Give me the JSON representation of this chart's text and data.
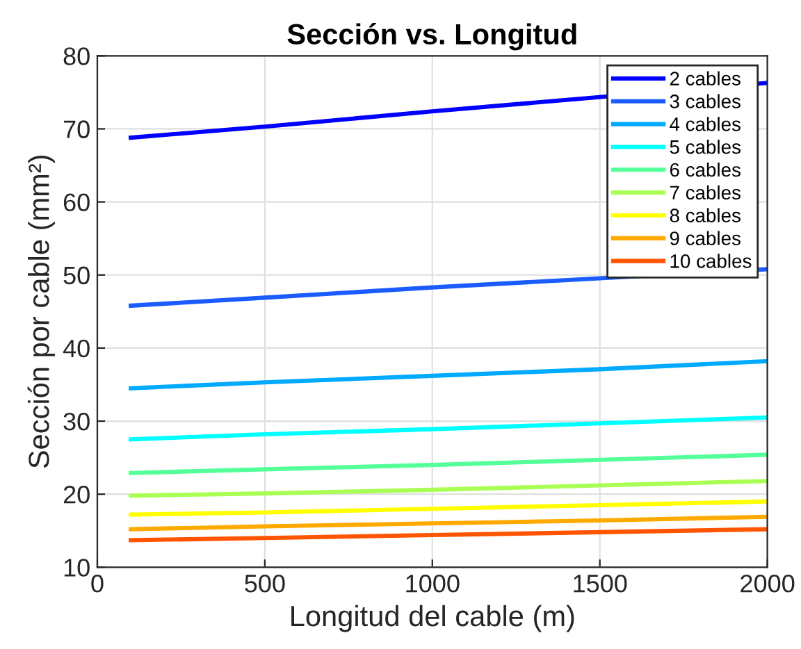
{
  "chart_data": {
    "type": "line",
    "title": "Sección vs. Longitud",
    "xlabel": "Longitud del cable (m)",
    "ylabel": "Sección por cable (mm²)",
    "xlim": [
      0,
      2000
    ],
    "xticks": [
      0,
      500,
      1000,
      1500,
      2000
    ],
    "ylim": [
      10,
      80
    ],
    "yticks": [
      10,
      20,
      30,
      40,
      50,
      60,
      70,
      80
    ],
    "grid": true,
    "legend": "top right",
    "series": [
      {
        "name": "2 cables",
        "color": "#0000ff",
        "x": [
          100,
          500,
          1000,
          2000
        ],
        "values": [
          68.8,
          70.3,
          72.4,
          76.3
        ]
      },
      {
        "name": "3 cables",
        "color": "#1a5cff",
        "x": [
          100,
          500,
          1000,
          2000
        ],
        "values": [
          45.8,
          46.9,
          48.3,
          50.8
        ]
      },
      {
        "name": "4 cables",
        "color": "#00aaff",
        "x": [
          100,
          500,
          1000,
          1500,
          2000
        ],
        "values": [
          34.5,
          35.3,
          36.2,
          37.1,
          38.2
        ]
      },
      {
        "name": "5 cables",
        "color": "#00ffff",
        "x": [
          100,
          500,
          1000,
          1500,
          2000
        ],
        "values": [
          27.5,
          28.2,
          28.9,
          29.7,
          30.5
        ]
      },
      {
        "name": "6 cables",
        "color": "#55ff99",
        "x": [
          100,
          500,
          1000,
          1500,
          2000
        ],
        "values": [
          22.9,
          23.4,
          24.0,
          24.7,
          25.4
        ]
      },
      {
        "name": "7 cables",
        "color": "#aaff55",
        "x": [
          100,
          500,
          1000,
          1500,
          2000
        ],
        "values": [
          19.8,
          20.1,
          20.6,
          21.2,
          21.8
        ]
      },
      {
        "name": "8 cables",
        "color": "#ffff00",
        "x": [
          100,
          500,
          1000,
          1500,
          2000
        ],
        "values": [
          17.2,
          17.5,
          18.0,
          18.5,
          19.0
        ]
      },
      {
        "name": "9 cables",
        "color": "#ffaa00",
        "x": [
          100,
          500,
          1000,
          1500,
          2000
        ],
        "values": [
          15.2,
          15.6,
          16.0,
          16.4,
          16.9
        ]
      },
      {
        "name": "10 cables",
        "color": "#ff5500",
        "x": [
          100,
          500,
          1000,
          1500,
          2000
        ],
        "values": [
          13.7,
          14.0,
          14.4,
          14.8,
          15.2
        ]
      }
    ]
  }
}
